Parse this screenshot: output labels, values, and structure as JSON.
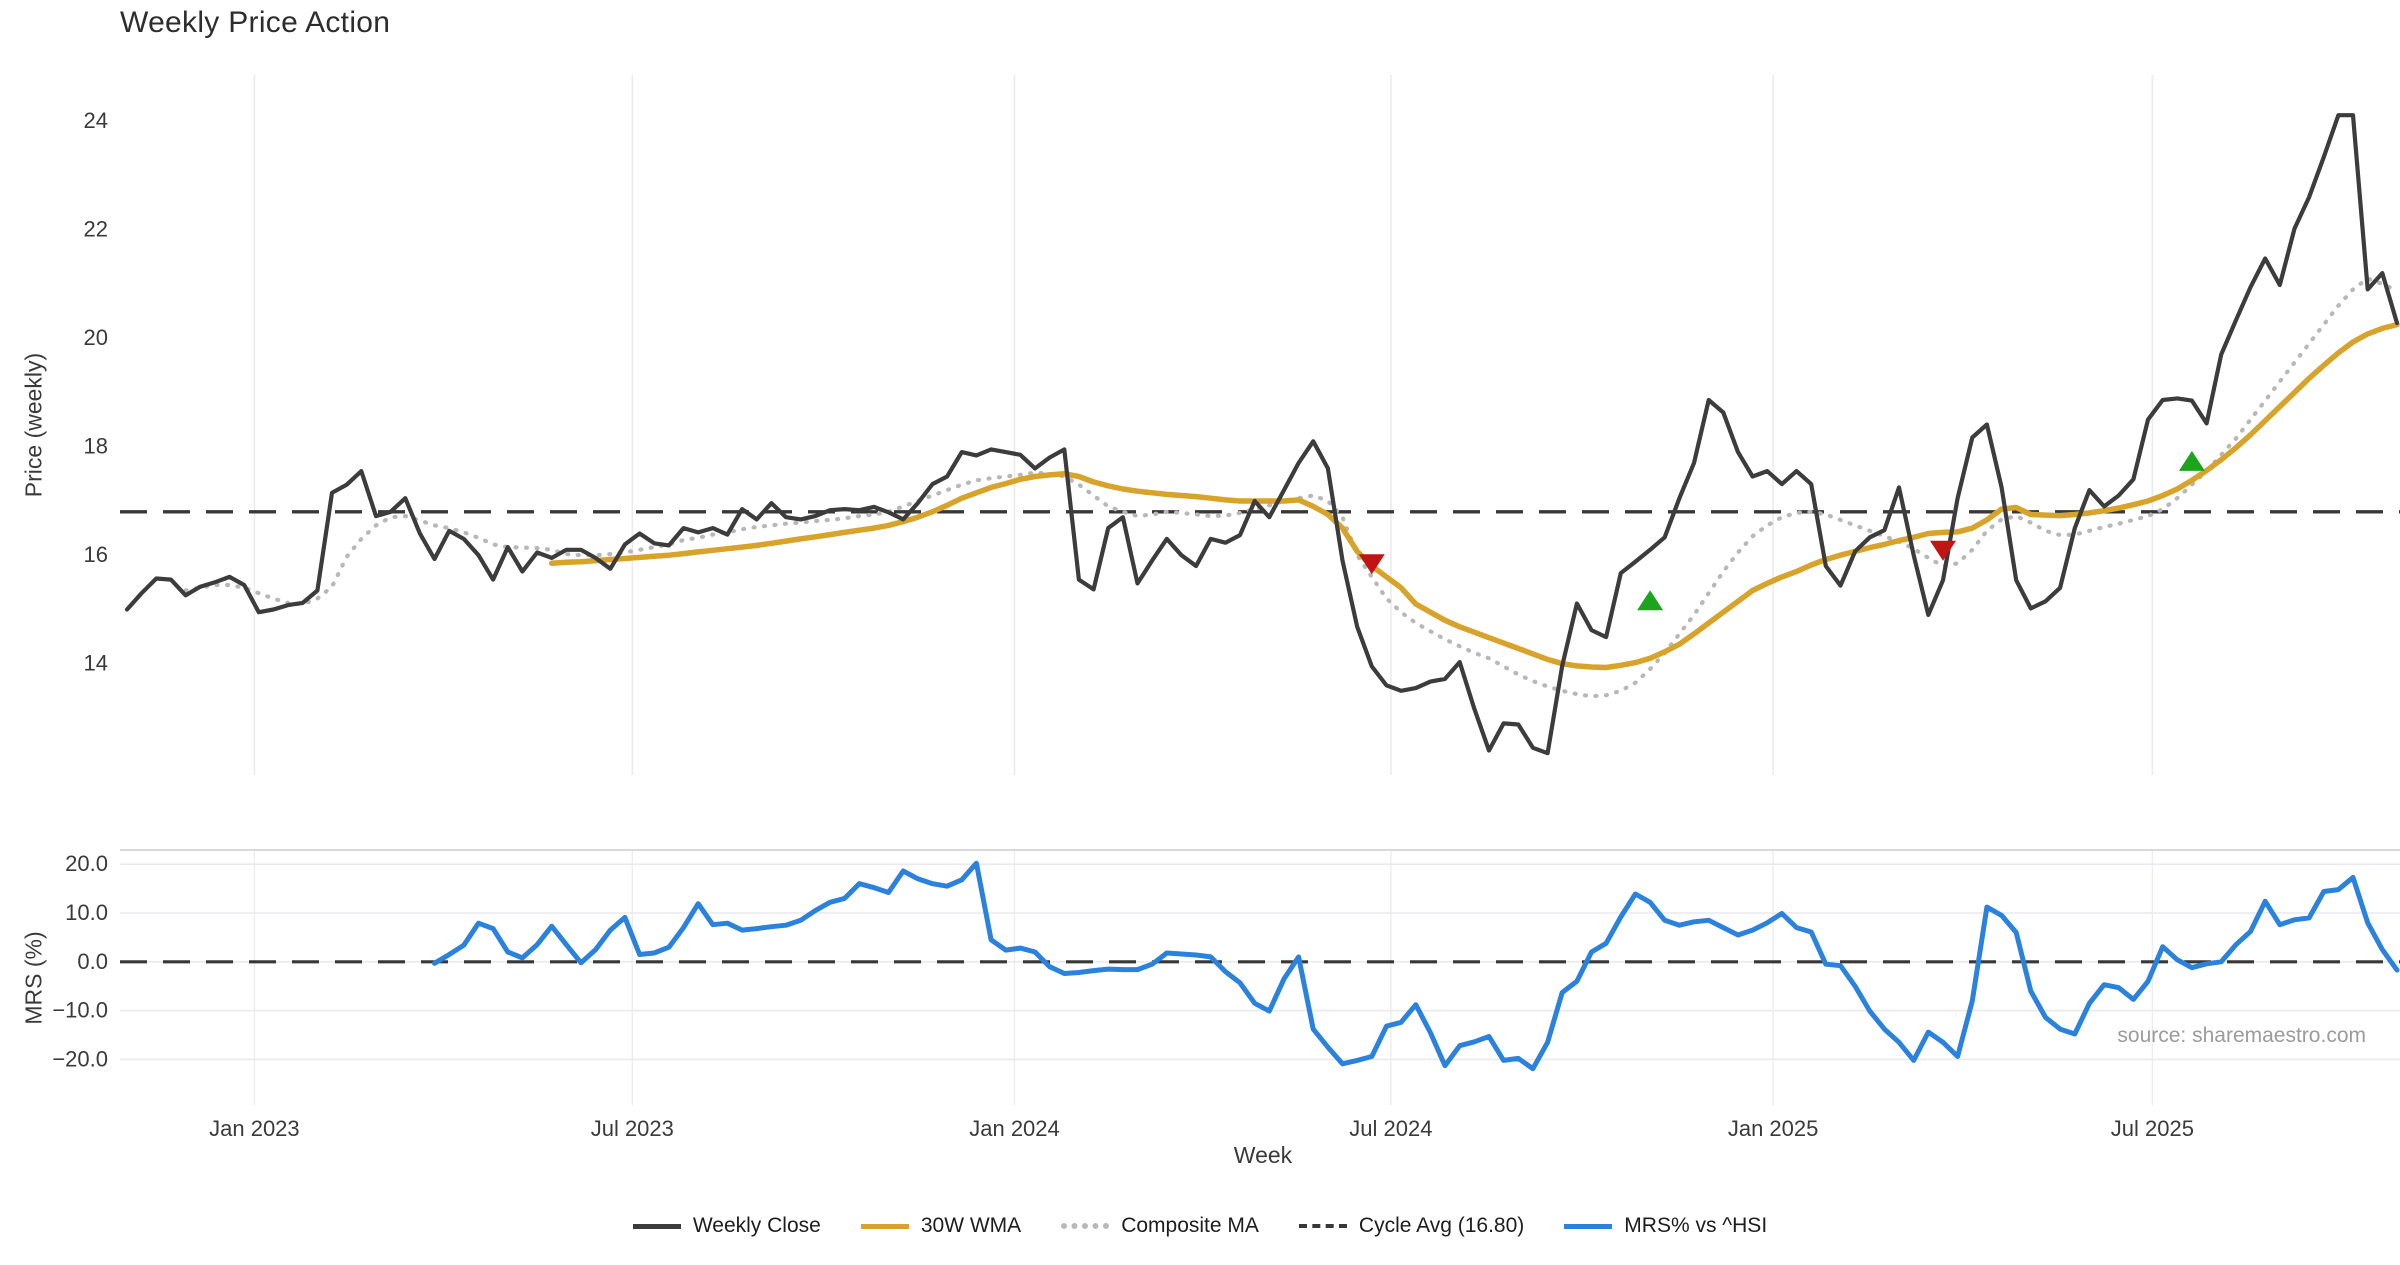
{
  "chart_meta": {
    "title": "Weekly Price Action",
    "x_axis_label": "Week",
    "top_y_axis_label": "Price (weekly)",
    "bottom_y_axis_label": "MRS (%)",
    "source_note": "source: sharemaestro.com"
  },
  "legend": {
    "items": [
      {
        "label": "Weekly Close",
        "style": "solid",
        "color": "#3c3c3c"
      },
      {
        "label": "30W WMA",
        "style": "solid",
        "color": "#d7a32a"
      },
      {
        "label": "Composite MA",
        "style": "dotted",
        "color": "#b8b8b8"
      },
      {
        "label": "Cycle Avg (16.80)",
        "style": "dashed",
        "color": "#383838"
      },
      {
        "label": "MRS% vs ^HSI",
        "style": "solid",
        "color": "#2a82dd"
      }
    ]
  },
  "chart_data": [
    {
      "type": "line",
      "panel": "top",
      "title": "Weekly Price Action",
      "xlabel": "Week",
      "ylabel": "Price (weekly)",
      "ylim": [
        11.95,
        24.85
      ],
      "yticks": [
        24,
        22,
        20,
        18,
        16,
        14
      ],
      "xticks": [
        {
          "week": 8.7,
          "label": "Jan 2023"
        },
        {
          "week": 34.5,
          "label": "Jul 2023"
        },
        {
          "week": 60.6,
          "label": "Jan 2024"
        },
        {
          "week": 86.3,
          "label": "Jul 2024"
        },
        {
          "week": 112.4,
          "label": "Jan 2025"
        },
        {
          "week": 138.3,
          "label": "Jul 2025"
        }
      ],
      "cycle_avg": 16.8,
      "series": [
        {
          "name": "Weekly Close",
          "color": "#3c3c3c",
          "style": "solid",
          "width": 4.2,
          "start_week": 0,
          "values": [
            15.0,
            15.3,
            15.57,
            15.55,
            15.26,
            15.42,
            15.5,
            15.6,
            15.45,
            14.95,
            15.0,
            15.08,
            15.12,
            15.35,
            17.15,
            17.3,
            17.55,
            16.72,
            16.8,
            17.05,
            16.4,
            15.93,
            16.45,
            16.3,
            16.0,
            15.55,
            16.15,
            15.7,
            16.05,
            15.95,
            16.1,
            16.1,
            15.95,
            15.75,
            16.2,
            16.4,
            16.22,
            16.18,
            16.5,
            16.42,
            16.5,
            16.38,
            16.85,
            16.66,
            16.96,
            16.7,
            16.66,
            16.72,
            16.83,
            16.85,
            16.83,
            16.89,
            16.79,
            16.66,
            16.96,
            17.31,
            17.45,
            17.9,
            17.84,
            17.95,
            17.9,
            17.85,
            17.6,
            17.8,
            17.95,
            15.55,
            15.37,
            16.5,
            16.7,
            15.48,
            15.9,
            16.3,
            16.0,
            15.8,
            16.3,
            16.23,
            16.37,
            17.0,
            16.7,
            17.2,
            17.7,
            18.1,
            17.6,
            15.9,
            14.68,
            13.95,
            13.6,
            13.5,
            13.55,
            13.67,
            13.72,
            14.03,
            13.17,
            12.4,
            12.9,
            12.88,
            12.45,
            12.35,
            13.96,
            15.11,
            14.62,
            14.49,
            15.67,
            15.88,
            16.1,
            16.33,
            17.05,
            17.7,
            18.86,
            18.63,
            17.9,
            17.45,
            17.55,
            17.31,
            17.55,
            17.31,
            15.8,
            15.44,
            16.07,
            16.33,
            16.46,
            17.25,
            16.0,
            14.9,
            15.54,
            17.05,
            18.17,
            18.41,
            17.25,
            15.54,
            15.02,
            15.15,
            15.4,
            16.5,
            17.2,
            16.9,
            17.1,
            17.4,
            18.5,
            18.86,
            18.89,
            18.85,
            18.43,
            19.7,
            20.33,
            20.94,
            21.47,
            20.98,
            22.02,
            22.6,
            23.34,
            24.11,
            24.11,
            20.9,
            21.2,
            20.28
          ]
        },
        {
          "name": "30W WMA",
          "color": "#d7a32a",
          "style": "solid",
          "width": 5.5,
          "start_week": 29,
          "values": [
            15.85,
            15.87,
            15.88,
            15.9,
            15.92,
            15.94,
            15.96,
            15.98,
            16.0,
            16.03,
            16.06,
            16.09,
            16.12,
            16.15,
            16.18,
            16.22,
            16.26,
            16.3,
            16.34,
            16.38,
            16.42,
            16.46,
            16.5,
            16.55,
            16.62,
            16.7,
            16.8,
            16.92,
            17.05,
            17.15,
            17.25,
            17.32,
            17.4,
            17.45,
            17.48,
            17.5,
            17.45,
            17.35,
            17.28,
            17.22,
            17.18,
            17.15,
            17.12,
            17.1,
            17.08,
            17.05,
            17.02,
            17.0,
            17.0,
            17.0,
            17.0,
            17.02,
            16.9,
            16.75,
            16.5,
            16.07,
            15.8,
            15.6,
            15.4,
            15.1,
            14.95,
            14.8,
            14.68,
            14.58,
            14.48,
            14.38,
            14.28,
            14.18,
            14.08,
            14.0,
            13.96,
            13.94,
            13.93,
            13.97,
            14.02,
            14.1,
            14.22,
            14.36,
            14.55,
            14.75,
            14.95,
            15.15,
            15.35,
            15.48,
            15.6,
            15.7,
            15.82,
            15.92,
            16.0,
            16.07,
            16.14,
            16.2,
            16.27,
            16.33,
            16.4,
            16.42,
            16.43,
            16.5,
            16.65,
            16.85,
            16.88,
            16.75,
            16.74,
            16.73,
            16.75,
            16.78,
            16.82,
            16.87,
            16.93,
            17.0,
            17.1,
            17.22,
            17.38,
            17.56,
            17.76,
            17.98,
            18.22,
            18.48,
            18.74,
            19.0,
            19.26,
            19.5,
            19.73,
            19.93,
            20.08,
            20.18,
            20.25
          ]
        },
        {
          "name": "Composite MA",
          "color": "#b8b8b8",
          "style": "dotted",
          "width": 4.2,
          "start_week": 4,
          "values": [
            15.35,
            15.4,
            15.45,
            15.45,
            15.4,
            15.3,
            15.2,
            15.12,
            15.1,
            15.2,
            15.42,
            15.97,
            16.3,
            16.55,
            16.7,
            16.72,
            16.64,
            16.55,
            16.5,
            16.42,
            16.32,
            16.2,
            16.15,
            16.14,
            16.13,
            16.1,
            16.02,
            16.0,
            16.0,
            16.02,
            16.05,
            16.1,
            16.15,
            16.2,
            16.28,
            16.32,
            16.38,
            16.42,
            16.48,
            16.52,
            16.55,
            16.58,
            16.6,
            16.63,
            16.65,
            16.68,
            16.72,
            16.75,
            16.8,
            16.9,
            17.0,
            17.1,
            17.2,
            17.3,
            17.38,
            17.42,
            17.45,
            17.48,
            17.52,
            17.5,
            17.45,
            17.3,
            17.1,
            16.9,
            16.8,
            16.72,
            16.75,
            16.8,
            16.78,
            16.75,
            16.72,
            16.73,
            16.78,
            16.85,
            16.92,
            17.0,
            17.05,
            17.1,
            17.0,
            16.7,
            16.0,
            15.6,
            15.2,
            14.95,
            14.75,
            14.6,
            14.45,
            14.32,
            14.2,
            14.1,
            13.95,
            13.8,
            13.68,
            13.58,
            13.5,
            13.44,
            13.4,
            13.42,
            13.5,
            13.65,
            13.9,
            14.2,
            14.55,
            14.9,
            15.3,
            15.7,
            16.05,
            16.35,
            16.55,
            16.7,
            16.78,
            16.8,
            16.75,
            16.65,
            16.55,
            16.45,
            16.35,
            16.25,
            16.12,
            15.95,
            15.8,
            15.85,
            16.1,
            16.45,
            16.66,
            16.72,
            16.6,
            16.45,
            16.37,
            16.38,
            16.45,
            16.52,
            16.58,
            16.65,
            16.72,
            16.85,
            17.05,
            17.3,
            17.55,
            17.85,
            18.15,
            18.5,
            18.85,
            19.2,
            19.55,
            19.9,
            20.25,
            20.6,
            20.9,
            21.1,
            21.0,
            20.88
          ]
        }
      ],
      "markers": [
        {
          "type": "sell",
          "week": 85,
          "price": 15.85,
          "color": "#c11515"
        },
        {
          "type": "buy",
          "week": 104,
          "price": 15.15,
          "color": "#1ca51c"
        },
        {
          "type": "sell",
          "week": 124,
          "price": 16.1,
          "color": "#c11515"
        },
        {
          "type": "buy",
          "week": 141,
          "price": 17.72,
          "color": "#1ca51c"
        }
      ]
    },
    {
      "type": "line",
      "panel": "bottom",
      "ylabel": "MRS (%)",
      "ylim": [
        -29.3,
        22.9
      ],
      "yticks": [
        {
          "value": 20,
          "label": "20.0"
        },
        {
          "value": 10,
          "label": "10.0"
        },
        {
          "value": 0,
          "label": "0.0"
        },
        {
          "value": -10,
          "label": "−10.0"
        },
        {
          "value": -20,
          "label": "−20.0"
        }
      ],
      "zero_line": 0,
      "series": [
        {
          "name": "MRS% vs ^HSI",
          "color": "#2a82dd",
          "style": "solid",
          "width": 5,
          "start_week": 21,
          "values": [
            -0.3,
            1.5,
            3.4,
            7.9,
            6.8,
            2.0,
            0.8,
            3.5,
            7.3,
            3.5,
            -0.2,
            2.5,
            6.5,
            9.1,
            1.5,
            1.8,
            3.0,
            7.0,
            11.9,
            7.6,
            7.9,
            6.5,
            6.8,
            7.2,
            7.5,
            8.5,
            10.5,
            12.2,
            13.0,
            16.0,
            15.2,
            14.2,
            18.6,
            17.0,
            16.0,
            15.5,
            16.8,
            20.2,
            4.5,
            2.4,
            2.8,
            2.0,
            -1.0,
            -2.4,
            -2.2,
            -1.8,
            -1.5,
            -1.6,
            -1.6,
            -0.5,
            1.8,
            1.6,
            1.4,
            1.0,
            -2.0,
            -4.3,
            -8.5,
            -10.1,
            -3.5,
            1.0,
            -13.8,
            -17.5,
            -20.9,
            -20.2,
            -19.4,
            -13.2,
            -12.4,
            -8.8,
            -14.5,
            -21.3,
            -17.2,
            -16.4,
            -15.3,
            -20.2,
            -19.8,
            -21.9,
            -16.5,
            -6.3,
            -4.0,
            2.0,
            3.8,
            9.2,
            13.9,
            12.2,
            8.5,
            7.5,
            8.2,
            8.5,
            7.0,
            5.5,
            6.5,
            8.0,
            9.9,
            7.0,
            6.1,
            -0.5,
            -0.8,
            -5.0,
            -10.1,
            -13.8,
            -16.5,
            -20.2,
            -14.4,
            -16.5,
            -19.4,
            -8.0,
            11.2,
            9.5,
            6.0,
            -6.0,
            -11.4,
            -13.8,
            -14.8,
            -8.5,
            -4.7,
            -5.3,
            -7.7,
            -4.0,
            3.1,
            0.4,
            -1.2,
            -0.4,
            0.0,
            3.5,
            6.2,
            12.4,
            7.6,
            8.6,
            9.0,
            14.4,
            14.8,
            17.3,
            8.0,
            2.5,
            -1.7
          ]
        }
      ]
    }
  ]
}
